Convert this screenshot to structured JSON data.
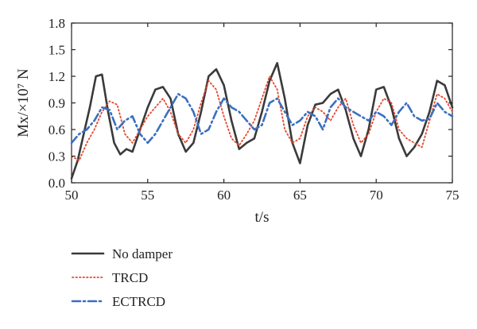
{
  "chart_data": {
    "type": "line",
    "xlabel": "t/s",
    "ylabel": "Mx/×10⁷ N",
    "xlim": [
      50,
      75
    ],
    "ylim": [
      0.0,
      1.8
    ],
    "xticks": [
      50,
      55,
      60,
      65,
      70,
      75
    ],
    "xtick_labels": [
      "50",
      "55",
      "60",
      "65",
      "70",
      "75"
    ],
    "yticks": [
      0.0,
      0.3,
      0.6,
      0.9,
      1.2,
      1.5,
      1.8
    ],
    "ytick_labels": [
      "0.0",
      "0.3",
      "0.6",
      "0.9",
      "1.2",
      "1.5",
      "1.8"
    ],
    "grid": false,
    "legend_position": "below-left",
    "series": [
      {
        "name": "No damper",
        "color": "#3a3a3a",
        "style": "solid",
        "x": [
          50.0,
          50.4,
          50.8,
          51.2,
          51.6,
          52.0,
          52.4,
          52.8,
          53.2,
          53.6,
          54.0,
          54.5,
          55.0,
          55.5,
          56.0,
          56.5,
          57.0,
          57.5,
          58.0,
          58.5,
          59.0,
          59.5,
          60.0,
          60.5,
          61.0,
          61.5,
          62.0,
          62.5,
          63.0,
          63.5,
          64.0,
          64.5,
          65.0,
          65.5,
          66.0,
          66.5,
          67.0,
          67.5,
          68.0,
          68.5,
          69.0,
          69.5,
          70.0,
          70.5,
          71.0,
          71.5,
          72.0,
          72.5,
          73.0,
          73.5,
          74.0,
          74.5,
          75.0
        ],
        "y": [
          0.05,
          0.25,
          0.55,
          0.85,
          1.2,
          1.22,
          0.8,
          0.45,
          0.32,
          0.38,
          0.35,
          0.6,
          0.85,
          1.05,
          1.08,
          0.95,
          0.55,
          0.35,
          0.45,
          0.8,
          1.2,
          1.28,
          1.1,
          0.7,
          0.38,
          0.45,
          0.5,
          0.8,
          1.15,
          1.35,
          0.95,
          0.45,
          0.22,
          0.65,
          0.88,
          0.9,
          1.0,
          1.05,
          0.82,
          0.5,
          0.3,
          0.6,
          1.05,
          1.08,
          0.85,
          0.5,
          0.3,
          0.4,
          0.55,
          0.8,
          1.15,
          1.1,
          0.85
        ]
      },
      {
        "name": "TRCD",
        "color": "#e8452c",
        "style": "dotted",
        "x": [
          50.0,
          50.5,
          51.0,
          51.5,
          52.0,
          52.5,
          53.0,
          53.5,
          54.0,
          54.5,
          55.0,
          55.5,
          56.0,
          56.5,
          57.0,
          57.5,
          58.0,
          58.5,
          59.0,
          59.5,
          60.0,
          60.5,
          61.0,
          61.5,
          62.0,
          62.5,
          63.0,
          63.5,
          64.0,
          64.5,
          65.0,
          65.5,
          66.0,
          66.5,
          67.0,
          67.5,
          68.0,
          68.5,
          69.0,
          69.5,
          70.0,
          70.5,
          71.0,
          71.5,
          72.0,
          72.5,
          73.0,
          73.5,
          74.0,
          74.5,
          75.0
        ],
        "y": [
          0.3,
          0.25,
          0.45,
          0.6,
          0.8,
          0.92,
          0.88,
          0.55,
          0.45,
          0.6,
          0.75,
          0.85,
          0.95,
          0.8,
          0.55,
          0.45,
          0.6,
          0.9,
          1.15,
          1.05,
          0.75,
          0.5,
          0.42,
          0.55,
          0.7,
          0.95,
          1.2,
          1.05,
          0.6,
          0.45,
          0.5,
          0.75,
          0.85,
          0.8,
          0.7,
          0.85,
          0.95,
          0.65,
          0.45,
          0.55,
          0.8,
          0.95,
          0.9,
          0.6,
          0.5,
          0.45,
          0.4,
          0.7,
          1.0,
          0.95,
          0.8
        ]
      },
      {
        "name": "ECTRCD",
        "color": "#3b6fbf",
        "style": "dashdot",
        "x": [
          50.0,
          50.5,
          51.0,
          51.5,
          52.0,
          52.5,
          53.0,
          53.5,
          54.0,
          54.5,
          55.0,
          55.5,
          56.0,
          56.5,
          57.0,
          57.5,
          58.0,
          58.5,
          59.0,
          59.5,
          60.0,
          60.5,
          61.0,
          61.5,
          62.0,
          62.5,
          63.0,
          63.5,
          64.0,
          64.5,
          65.0,
          65.5,
          66.0,
          66.5,
          67.0,
          67.5,
          68.0,
          68.5,
          69.0,
          69.5,
          70.0,
          70.5,
          71.0,
          71.5,
          72.0,
          72.5,
          73.0,
          73.5,
          74.0,
          74.5,
          75.0
        ],
        "y": [
          0.45,
          0.55,
          0.6,
          0.7,
          0.85,
          0.82,
          0.6,
          0.7,
          0.75,
          0.55,
          0.45,
          0.55,
          0.7,
          0.85,
          1.0,
          0.95,
          0.8,
          0.55,
          0.6,
          0.8,
          0.95,
          0.85,
          0.8,
          0.7,
          0.6,
          0.65,
          0.9,
          0.95,
          0.8,
          0.65,
          0.7,
          0.8,
          0.75,
          0.6,
          0.85,
          0.95,
          0.85,
          0.8,
          0.75,
          0.7,
          0.8,
          0.75,
          0.65,
          0.8,
          0.9,
          0.75,
          0.7,
          0.72,
          0.9,
          0.8,
          0.75
        ]
      }
    ]
  }
}
